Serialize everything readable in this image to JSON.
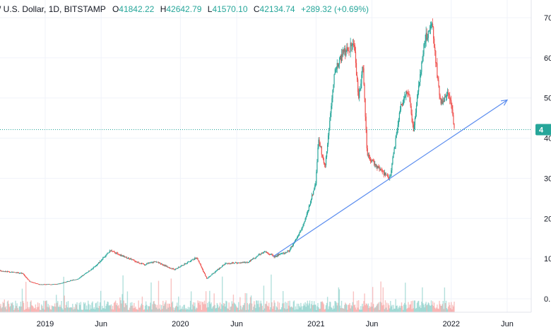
{
  "header": {
    "symbol_text": "/ U.S. Dollar, 1D, BITSTAMP",
    "open_label": "O",
    "open_value": "41842.22",
    "high_label": "H",
    "high_value": "42642.79",
    "low_label": "L",
    "low_value": "41570.10",
    "close_label": "C",
    "close_value": "42134.74",
    "change_text": "+289.32 (+0.69%)"
  },
  "price_badge": "4",
  "colors": {
    "up": "#26a69a",
    "down": "#ef5350",
    "trendline": "#5b8def",
    "badge": "#26a69a",
    "grid": "#f0f3fa"
  },
  "chart_data": {
    "type": "candlestick",
    "x_tick_labels": [
      "2019",
      "Jun",
      "2020",
      "Jun",
      "2021",
      "Jun",
      "2022",
      "Jun"
    ],
    "x_ticks": [
      "2019-01-01",
      "2019-06-01",
      "2020-01-01",
      "2020-06-01",
      "2021-01-01",
      "2021-06-01",
      "2022-01-01",
      "2022-06-01"
    ],
    "y_tick_labels": [
      "70",
      "60",
      "50",
      "40",
      "30",
      "20",
      "10",
      "0."
    ],
    "y_ticks": [
      70000,
      60000,
      50000,
      40000,
      30000,
      20000,
      10000,
      0
    ],
    "ylim": [
      -3000,
      73000
    ],
    "xlim": [
      "2018-09-01",
      "2022-08-01"
    ],
    "last_close": 42134.74,
    "grid": true,
    "price_path": [
      [
        "2018-09-01",
        7000
      ],
      [
        "2018-11-01",
        6300
      ],
      [
        "2018-11-20",
        4300
      ],
      [
        "2018-12-15",
        3600
      ],
      [
        "2019-02-01",
        3600
      ],
      [
        "2019-04-01",
        5000
      ],
      [
        "2019-05-15",
        8000
      ],
      [
        "2019-06-26",
        12000
      ],
      [
        "2019-08-01",
        10500
      ],
      [
        "2019-09-25",
        8500
      ],
      [
        "2019-10-26",
        9300
      ],
      [
        "2019-12-15",
        7200
      ],
      [
        "2020-02-14",
        10300
      ],
      [
        "2020-03-12",
        5000
      ],
      [
        "2020-05-01",
        8800
      ],
      [
        "2020-07-01",
        9100
      ],
      [
        "2020-08-15",
        11800
      ],
      [
        "2020-09-10",
        10500
      ],
      [
        "2020-10-20",
        11900
      ],
      [
        "2020-11-15",
        16000
      ],
      [
        "2020-12-01",
        19000
      ],
      [
        "2020-12-31",
        29000
      ],
      [
        "2021-01-08",
        40000
      ],
      [
        "2021-01-25",
        32500
      ],
      [
        "2021-02-21",
        57000
      ],
      [
        "2021-03-13",
        61000
      ],
      [
        "2021-04-14",
        63500
      ],
      [
        "2021-04-25",
        50000
      ],
      [
        "2021-05-08",
        58000
      ],
      [
        "2021-05-19",
        36000
      ],
      [
        "2021-06-22",
        32000
      ],
      [
        "2021-07-20",
        30000
      ],
      [
        "2021-08-15",
        47000
      ],
      [
        "2021-09-06",
        52000
      ],
      [
        "2021-09-21",
        42000
      ],
      [
        "2021-10-20",
        64000
      ],
      [
        "2021-11-10",
        68500
      ],
      [
        "2021-11-26",
        54000
      ],
      [
        "2021-12-04",
        49000
      ],
      [
        "2021-12-27",
        51000
      ],
      [
        "2022-01-04",
        46000
      ],
      [
        "2022-01-10",
        42000
      ]
    ],
    "trendline": {
      "start": [
        "2020-09-07",
        10500
      ],
      "end": [
        "2022-06-01",
        49500
      ]
    }
  }
}
